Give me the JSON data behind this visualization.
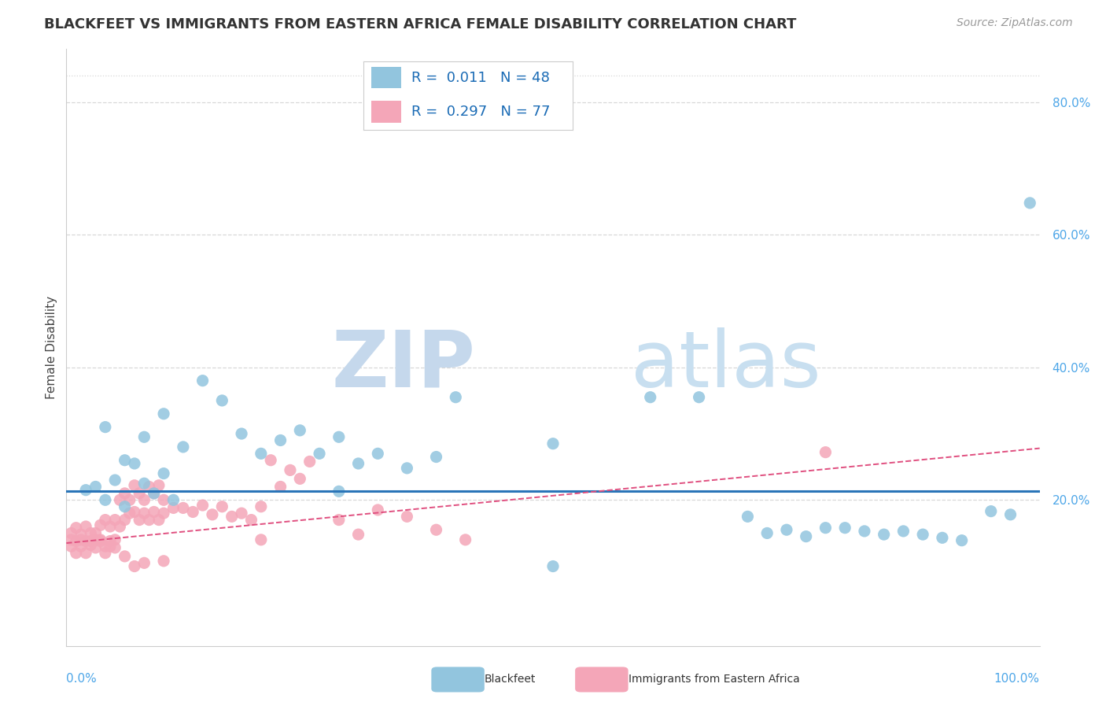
{
  "title": "BLACKFEET VS IMMIGRANTS FROM EASTERN AFRICA FEMALE DISABILITY CORRELATION CHART",
  "source": "Source: ZipAtlas.com",
  "ylabel": "Female Disability",
  "xlim": [
    0.0,
    1.0
  ],
  "ylim": [
    -0.02,
    0.88
  ],
  "ytick_vals": [
    0.2,
    0.4,
    0.6,
    0.8
  ],
  "ytick_labels": [
    "20.0%",
    "40.0%",
    "60.0%",
    "80.0%"
  ],
  "blue_color": "#92c5de",
  "pink_color": "#f4a6b8",
  "blue_r": 0.011,
  "blue_n": 48,
  "pink_r": 0.297,
  "pink_n": 77,
  "blue_scatter_x": [
    0.02,
    0.03,
    0.04,
    0.05,
    0.06,
    0.07,
    0.08,
    0.09,
    0.1,
    0.11,
    0.04,
    0.06,
    0.08,
    0.1,
    0.12,
    0.14,
    0.16,
    0.18,
    0.2,
    0.22,
    0.24,
    0.26,
    0.28,
    0.3,
    0.32,
    0.35,
    0.4,
    0.5,
    0.6,
    0.65,
    0.7,
    0.72,
    0.74,
    0.76,
    0.78,
    0.8,
    0.82,
    0.84,
    0.86,
    0.88,
    0.9,
    0.92,
    0.95,
    0.97,
    0.99,
    0.5,
    0.38,
    0.28
  ],
  "blue_scatter_y": [
    0.215,
    0.22,
    0.2,
    0.23,
    0.19,
    0.255,
    0.225,
    0.21,
    0.24,
    0.2,
    0.31,
    0.26,
    0.295,
    0.33,
    0.28,
    0.38,
    0.35,
    0.3,
    0.27,
    0.29,
    0.305,
    0.27,
    0.295,
    0.255,
    0.27,
    0.248,
    0.355,
    0.285,
    0.355,
    0.355,
    0.175,
    0.15,
    0.155,
    0.145,
    0.158,
    0.158,
    0.153,
    0.148,
    0.153,
    0.148,
    0.143,
    0.139,
    0.183,
    0.178,
    0.648,
    0.1,
    0.265,
    0.213
  ],
  "pink_scatter_x": [
    0.005,
    0.01,
    0.015,
    0.02,
    0.025,
    0.03,
    0.035,
    0.04,
    0.045,
    0.05,
    0.005,
    0.01,
    0.015,
    0.02,
    0.025,
    0.03,
    0.035,
    0.04,
    0.045,
    0.05,
    0.005,
    0.01,
    0.015,
    0.02,
    0.025,
    0.03,
    0.035,
    0.04,
    0.045,
    0.05,
    0.055,
    0.06,
    0.065,
    0.07,
    0.075,
    0.08,
    0.085,
    0.09,
    0.095,
    0.1,
    0.055,
    0.06,
    0.065,
    0.07,
    0.075,
    0.08,
    0.085,
    0.09,
    0.095,
    0.1,
    0.11,
    0.12,
    0.13,
    0.14,
    0.15,
    0.16,
    0.17,
    0.18,
    0.19,
    0.2,
    0.21,
    0.22,
    0.23,
    0.24,
    0.25,
    0.28,
    0.32,
    0.35,
    0.38,
    0.41,
    0.06,
    0.07,
    0.08,
    0.1,
    0.2,
    0.3,
    0.78
  ],
  "pink_scatter_y": [
    0.14,
    0.138,
    0.14,
    0.138,
    0.132,
    0.14,
    0.14,
    0.13,
    0.138,
    0.14,
    0.15,
    0.158,
    0.148,
    0.16,
    0.15,
    0.15,
    0.162,
    0.17,
    0.16,
    0.17,
    0.13,
    0.12,
    0.13,
    0.12,
    0.138,
    0.128,
    0.138,
    0.12,
    0.13,
    0.128,
    0.16,
    0.17,
    0.18,
    0.182,
    0.17,
    0.18,
    0.17,
    0.182,
    0.17,
    0.18,
    0.2,
    0.21,
    0.2,
    0.222,
    0.21,
    0.2,
    0.22,
    0.21,
    0.222,
    0.2,
    0.188,
    0.188,
    0.182,
    0.192,
    0.178,
    0.19,
    0.175,
    0.18,
    0.17,
    0.19,
    0.26,
    0.22,
    0.245,
    0.232,
    0.258,
    0.17,
    0.185,
    0.175,
    0.155,
    0.14,
    0.115,
    0.1,
    0.105,
    0.108,
    0.14,
    0.148,
    0.272
  ],
  "blue_line_y": 0.213,
  "pink_line_x_start": 0.0,
  "pink_line_x_end": 1.0,
  "pink_line_y_start": 0.135,
  "pink_line_y_end": 0.278,
  "watermark_zip": "ZIP",
  "watermark_atlas": "atlas",
  "watermark_color": "#c8dff0",
  "legend_r1_color": "#1a6bb5",
  "legend_r2_color": "#1a6bb5",
  "grid_color": "#d8d8d8",
  "grid_linestyle": "--",
  "top_border_linestyle": ":",
  "background_color": "#ffffff"
}
